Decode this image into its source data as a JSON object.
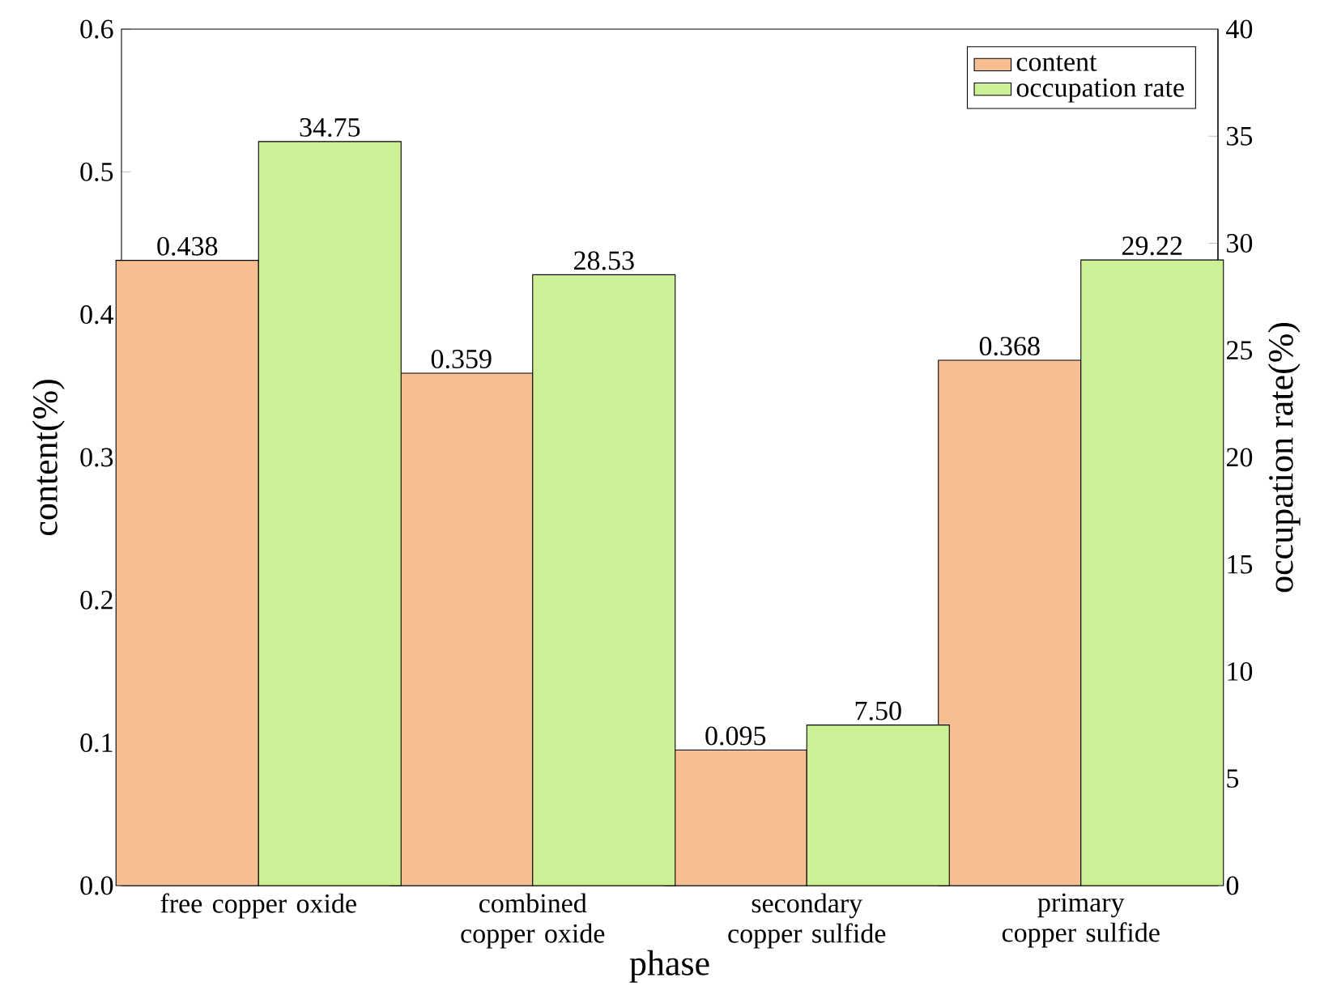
{
  "chart_data": {
    "type": "bar",
    "xlabel": "phase",
    "ylabel": "content(%)",
    "y2label": "occupation rate(%)",
    "categories": [
      "free copper oxide",
      "combined copper oxide",
      "secondary copper sulfide",
      "primary copper sulfide"
    ],
    "series": [
      {
        "name": "content",
        "color": "#f6be91",
        "values": [
          0.438,
          0.359,
          0.095,
          0.368
        ],
        "value_labels": [
          "0.438",
          "0.359",
          "0.095",
          "0.368"
        ]
      },
      {
        "name": "occupation rate",
        "color": "#cdf096",
        "axis": "y2",
        "values": [
          34.75,
          28.53,
          7.5,
          29.22
        ],
        "value_labels": [
          "34.75",
          "28.53",
          "7.50",
          "29.22"
        ]
      }
    ],
    "ylim": [
      0,
      0.6
    ],
    "yticks": [
      {
        "value": 0,
        "label": "0.0"
      },
      0.1,
      0.2,
      0.3,
      0.4,
      0.5,
      0.6
    ],
    "y2lim": [
      0,
      40
    ],
    "y2ticks": [
      0,
      5,
      10,
      15,
      20,
      25,
      30,
      35,
      40
    ],
    "legend": "top right",
    "grid": false
  }
}
